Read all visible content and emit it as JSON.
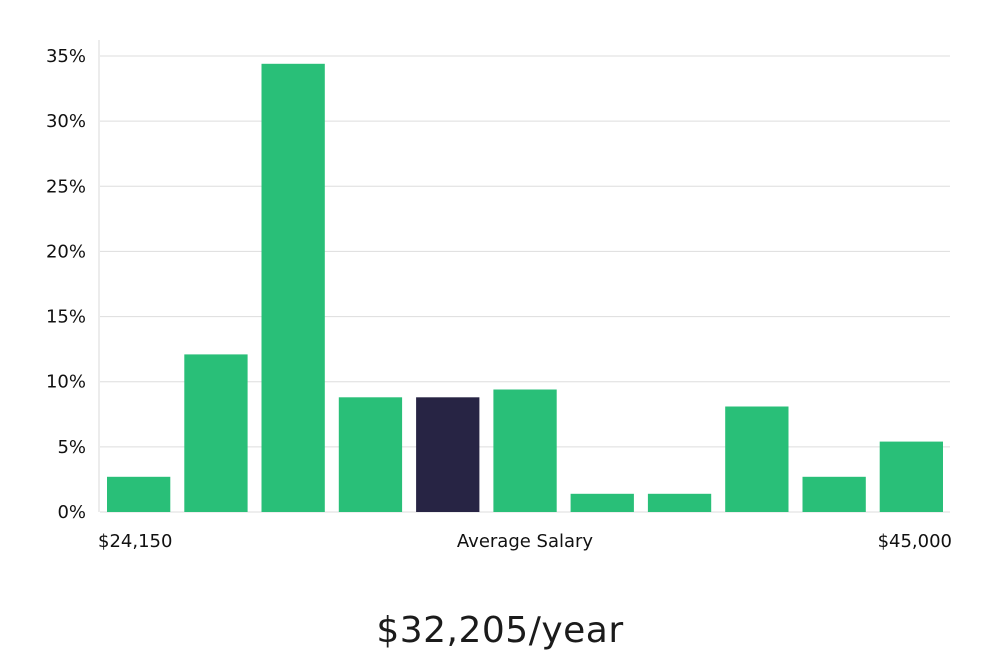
{
  "chart_data": {
    "type": "bar",
    "x_labels": {
      "left": "$24,150",
      "center": "Average Salary",
      "right": "$45,000"
    },
    "values": [
      2.7,
      12.1,
      34.4,
      8.8,
      8.8,
      9.4,
      1.4,
      1.4,
      8.1,
      2.7,
      5.4
    ],
    "highlight_index": 4,
    "y_ticks": [
      "0%",
      "5%",
      "10%",
      "15%",
      "20%",
      "25%",
      "30%",
      "35%"
    ],
    "ylim": [
      0,
      35
    ],
    "grid": true,
    "colors": {
      "bar": "#29bf78",
      "highlight": "#272444",
      "grid": "#dddddd",
      "axis": "#d8d8d8"
    }
  },
  "caption": {
    "salary": "$32,205/year"
  }
}
